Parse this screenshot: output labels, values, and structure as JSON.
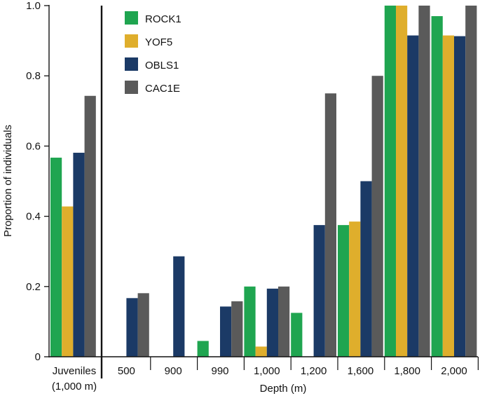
{
  "chart_data": {
    "type": "bar",
    "title": "",
    "xlabel": "Depth (m)",
    "ylabel": "Proportion of individuals",
    "ylim": [
      0,
      1.0
    ],
    "yticks": [
      "0",
      "0.2",
      "0.4",
      "0.6",
      "0.8",
      "1.0"
    ],
    "grid": false,
    "legend_position": "top-left",
    "categories": [
      {
        "label": "Juveniles",
        "sublabel": "(1,000 m)"
      },
      {
        "label": "500",
        "sublabel": ""
      },
      {
        "label": "900",
        "sublabel": ""
      },
      {
        "label": "990",
        "sublabel": ""
      },
      {
        "label": "1,000",
        "sublabel": ""
      },
      {
        "label": "1,200",
        "sublabel": ""
      },
      {
        "label": "1,600",
        "sublabel": ""
      },
      {
        "label": "1,800",
        "sublabel": ""
      },
      {
        "label": "2,000",
        "sublabel": ""
      }
    ],
    "series": [
      {
        "name": "ROCK1",
        "color": "#1fa550",
        "values": [
          0.567,
          0,
          0,
          0.045,
          0.2,
          0.125,
          0.375,
          1.0,
          0.97
        ]
      },
      {
        "name": "YOF5",
        "color": "#dfae2c",
        "values": [
          0.428,
          0,
          0,
          0,
          0.029,
          0,
          0.385,
          1.0,
          0.915
        ]
      },
      {
        "name": "OBLS1",
        "color": "#1b3a66",
        "values": [
          0.581,
          0.167,
          0.286,
          0.143,
          0.194,
          0.375,
          0.5,
          0.915,
          0.913
        ]
      },
      {
        "name": "CAC1E",
        "color": "#5a5a5a",
        "values": [
          0.743,
          0.181,
          0,
          0.158,
          0.2,
          0.75,
          0.8,
          1.0,
          1.0
        ]
      }
    ]
  }
}
